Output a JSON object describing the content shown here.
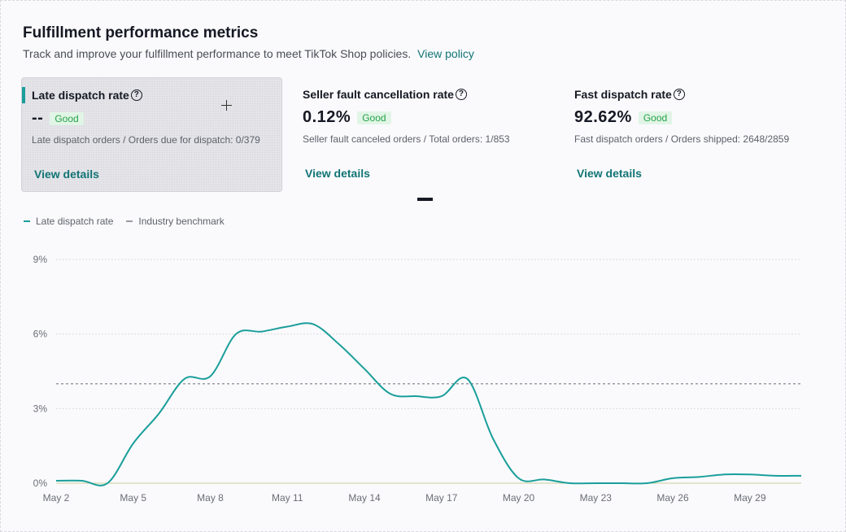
{
  "header": {
    "title": "Fulfillment performance metrics",
    "subtitle": "Track and improve your fulfillment performance to meet TikTok Shop policies.",
    "policy_link": "View policy"
  },
  "cards": [
    {
      "title": "Late dispatch rate",
      "value": "--",
      "badge": "Good",
      "desc": "Late dispatch orders / Orders due for dispatch: 0/379",
      "link": "View details"
    },
    {
      "title": "Seller fault cancellation rate",
      "value": "0.12%",
      "badge": "Good",
      "desc": "Seller fault canceled orders / Total orders: 1/853",
      "link": "View details"
    },
    {
      "title": "Fast dispatch rate",
      "value": "92.62%",
      "badge": "Good",
      "desc": "Fast dispatch orders / Orders shipped: 2648/2859",
      "link": "View details"
    }
  ],
  "legend": {
    "series": "Late dispatch rate",
    "benchmark": "Industry benchmark"
  },
  "colors": {
    "accent": "#1a9e9a",
    "link": "#127474",
    "badge_bg": "#e1f5e6",
    "badge_text": "#25a249"
  },
  "chart_data": {
    "type": "line",
    "x_tick_labels": [
      "May 2",
      "May 5",
      "May 8",
      "May 11",
      "May 14",
      "May 17",
      "May 20",
      "May 23",
      "May 26",
      "May 29"
    ],
    "y_tick_labels": [
      "0%",
      "3%",
      "6%",
      "9%"
    ],
    "ylim": [
      0,
      9
    ],
    "grid": true,
    "legend_position": "top-left",
    "series": [
      {
        "name": "Late dispatch rate",
        "x": [
          "May 2",
          "May 3",
          "May 4",
          "May 5",
          "May 6",
          "May 7",
          "May 8",
          "May 9",
          "May 10",
          "May 11",
          "May 12",
          "May 13",
          "May 14",
          "May 15",
          "May 16",
          "May 17",
          "May 18",
          "May 19",
          "May 20",
          "May 21",
          "May 22",
          "May 23",
          "May 24",
          "May 25",
          "May 26",
          "May 27",
          "May 28",
          "May 29",
          "May 30",
          "May 31"
        ],
        "values": [
          0.1,
          0.1,
          0.0,
          1.6,
          2.8,
          4.2,
          4.3,
          6.0,
          6.1,
          6.3,
          6.4,
          5.6,
          4.6,
          3.6,
          3.5,
          3.5,
          4.2,
          1.8,
          0.2,
          0.15,
          0.0,
          0.0,
          0.0,
          0.0,
          0.2,
          0.25,
          0.35,
          0.35,
          0.3,
          0.3
        ]
      }
    ],
    "benchmark": {
      "name": "Industry benchmark",
      "value": 4.0
    }
  }
}
